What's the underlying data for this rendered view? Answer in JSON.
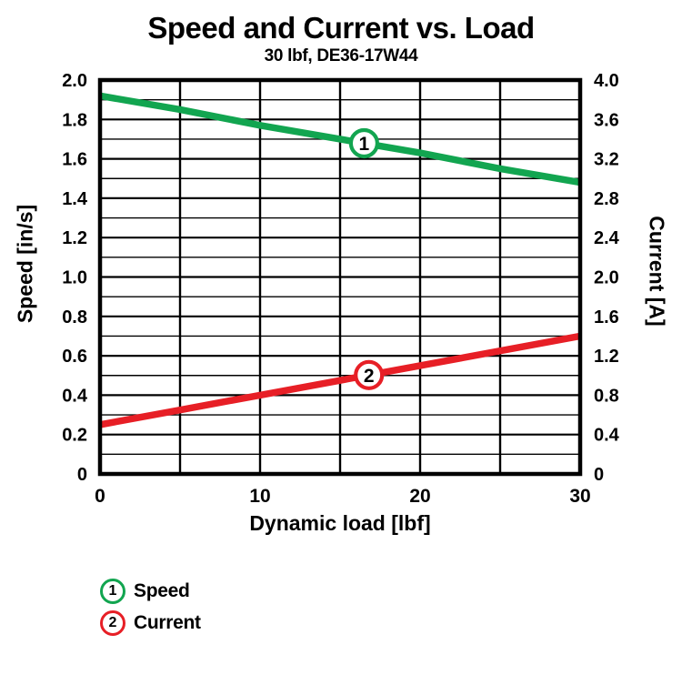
{
  "chart": {
    "title": "Speed and Current vs. Load",
    "subtitle": "30 lbf, DE36-17W44"
  },
  "chart_data": {
    "type": "line",
    "title": "Speed and Current vs. Load",
    "subtitle": "30 lbf, DE36-17W44",
    "xlabel": "Dynamic load [lbf]",
    "x": [
      0,
      5,
      10,
      15,
      20,
      25,
      30
    ],
    "xlim": [
      0,
      30
    ],
    "x_tick_labels": [
      "0",
      "10",
      "20",
      "30"
    ],
    "x_minor_step": 5,
    "grid": "on",
    "left_axis": {
      "label": "Speed [in/s]",
      "lim": [
        0,
        2.0
      ],
      "tick_labels": [
        "2.0",
        "1.8",
        "1.6",
        "1.4",
        "1.2",
        "1.0",
        "0.8",
        "0.6",
        "0.4",
        "0.2",
        "0"
      ],
      "minor_step": 0.1
    },
    "right_axis": {
      "label": "Current [A]",
      "lim": [
        0,
        4.0
      ],
      "tick_labels": [
        "4.0",
        "3.6",
        "3.2",
        "2.8",
        "2.4",
        "2.0",
        "1.6",
        "1.2",
        "0.8",
        "0.4",
        "0"
      ],
      "minor_step": 0.2
    },
    "series": [
      {
        "name": "Speed",
        "marker": "1",
        "axis": "left",
        "color": "#12A550",
        "values": [
          1.92,
          1.85,
          1.77,
          1.7,
          1.63,
          1.55,
          1.48
        ],
        "marker_x": 16.5
      },
      {
        "name": "Current",
        "marker": "2",
        "axis": "right",
        "color": "#E71F26",
        "values": [
          0.5,
          0.65,
          0.8,
          0.95,
          1.1,
          1.25,
          1.4
        ],
        "marker_x": 16.8
      }
    ],
    "legend": [
      {
        "marker": "1",
        "label": "Speed",
        "color": "#12A550"
      },
      {
        "marker": "2",
        "label": "Current",
        "color": "#E71F26"
      }
    ],
    "colors": {
      "grid": "#000000",
      "border": "#000000",
      "background": "#FFFFFF"
    }
  }
}
